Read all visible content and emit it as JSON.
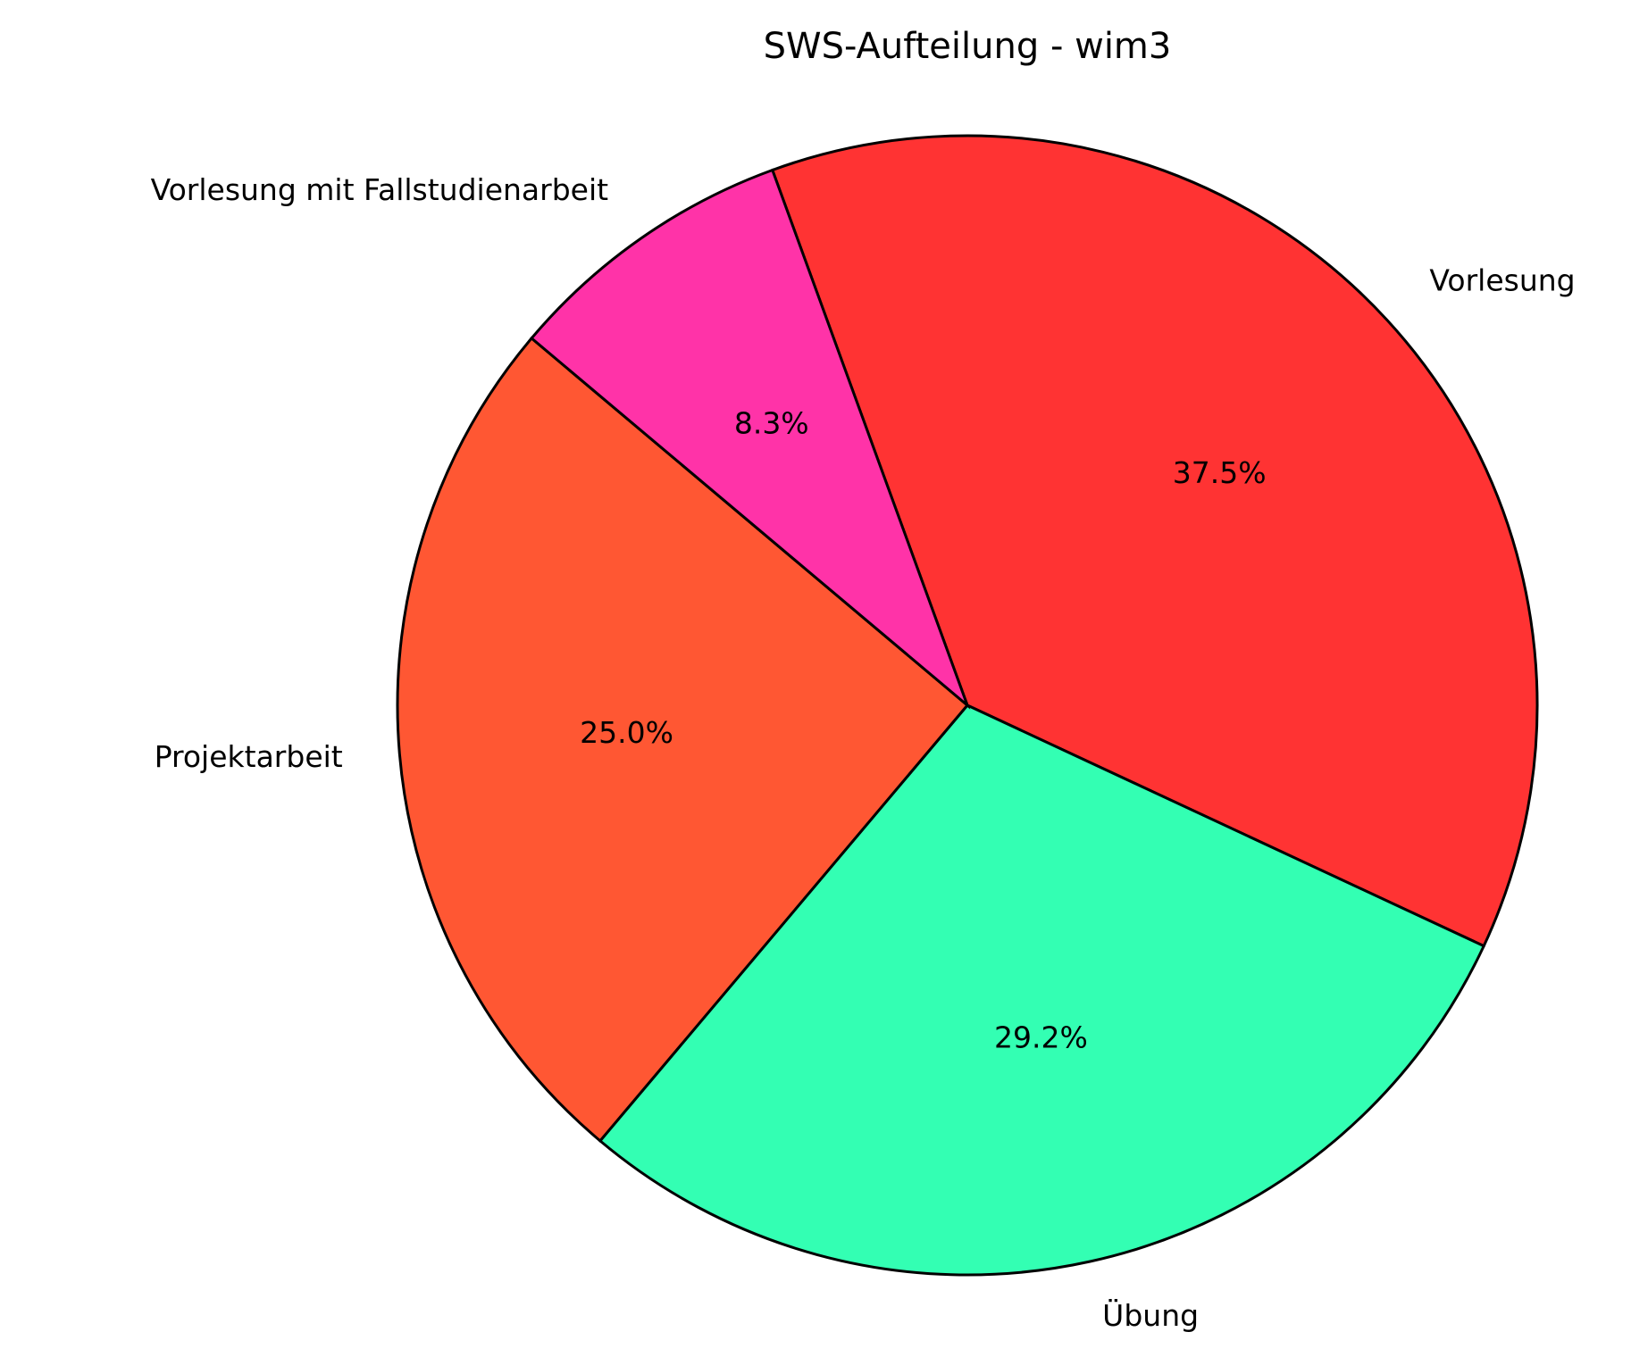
{
  "chart_data": {
    "type": "pie",
    "title": "SWS-Aufteilung - wim3",
    "categories": [
      "Vorlesung",
      "Übung",
      "Projektarbeit",
      "Vorlesung mit Fallstudienarbeit"
    ],
    "values": [
      37.5,
      29.2,
      25.0,
      8.3
    ],
    "value_labels": [
      "37.5%",
      "29.2%",
      "25.0%",
      "8.3%"
    ],
    "colors": [
      "#ff3333",
      "#33ffb3",
      "#ff5733",
      "#ff33a8"
    ],
    "start_angle": 110,
    "counterclockwise": false
  }
}
